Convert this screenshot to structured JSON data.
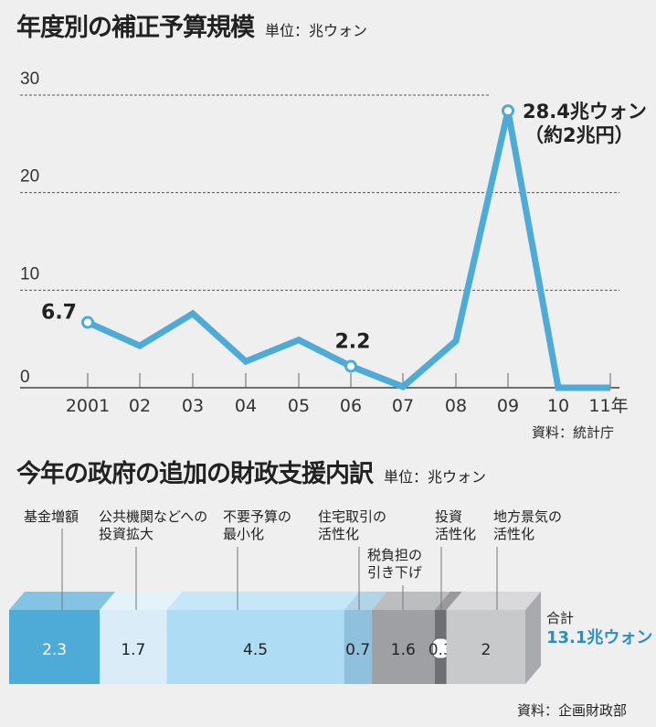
{
  "chart_data": [
    {
      "type": "line",
      "title": "年度別の補正予算規模",
      "unit": "単位：兆ウォン",
      "categories": [
        "2001",
        "02",
        "03",
        "04",
        "05",
        "06",
        "07",
        "08",
        "09",
        "10",
        "11年"
      ],
      "values": [
        6.7,
        4.3,
        7.6,
        2.7,
        4.9,
        2.2,
        0.1,
        4.8,
        28.4,
        0,
        0
      ],
      "yticks": [
        "0",
        "10",
        "20",
        "30"
      ],
      "ylim": [
        0,
        30
      ],
      "grid": true,
      "annotations": [
        {
          "category": "2001",
          "text": "6.7"
        },
        {
          "category": "06",
          "text": "2.2"
        },
        {
          "category": "09",
          "text": "28.4兆ウォン",
          "text2": "（約2兆円）"
        }
      ],
      "source": "資料：統計庁",
      "color": "#4eaad6"
    },
    {
      "type": "bar",
      "orientation": "stacked-horizontal",
      "title": "今年の政府の追加の財政支援内訳",
      "unit": "単位：兆ウォン",
      "categories": [
        "基金増額",
        "公共機関などへの\n投資拡大",
        "不要予算の\n最小化",
        "住宅取引の\n活性化",
        "税負担の\n引き下げ",
        "投資\n活性化",
        "地方景気の\n活性化"
      ],
      "values": [
        2.3,
        1.7,
        4.5,
        0.7,
        1.6,
        0.3,
        2
      ],
      "value_labels": [
        "2.3",
        "1.7",
        "4.5",
        "0.7",
        "1.6",
        "0.3",
        "2"
      ],
      "colors": [
        "#4eaad6",
        "#d9ecf8",
        "#aedcf5",
        "#8fc1df",
        "#9fa0a4",
        "#6e6f73",
        "#c8c9cb"
      ],
      "total_label": "合計",
      "total_value": "13.1兆ウォン",
      "source": "資料：企画財政部"
    }
  ]
}
